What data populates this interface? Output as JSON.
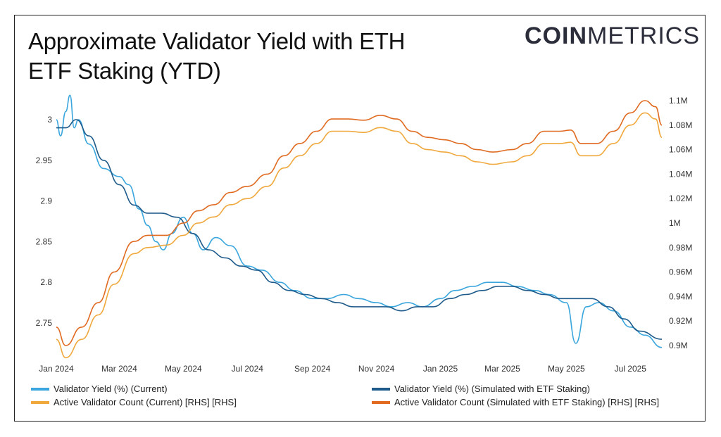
{
  "title_line1": "Approximate Validator Yield with ETH",
  "title_line2": "ETF Staking (YTD)",
  "logo": {
    "bold": "COIN",
    "light": "METRICS"
  },
  "chart_data": {
    "type": "line",
    "title": "Approximate Validator Yield with ETH ETF Staking (YTD)",
    "x_ticks": [
      "Jan 2024",
      "Mar 2024",
      "May 2024",
      "Jul 2024",
      "Sep 2024",
      "Nov 2024",
      "Jan 2025",
      "Mar 2025",
      "May 2025",
      "Jul 2025"
    ],
    "x_range": [
      "2024-01-01",
      "2025-07-31"
    ],
    "y_left": {
      "ticks": [
        "2.75",
        "2.8",
        "2.85",
        "2.9",
        "2.95",
        "3"
      ],
      "range": [
        2.725,
        3.03
      ]
    },
    "y_right": {
      "ticks": [
        "0.9M",
        "0.92M",
        "0.94M",
        "0.96M",
        "0.98M",
        "1M",
        "1.02M",
        "1.04M",
        "1.06M",
        "1.08M",
        "1.1M"
      ],
      "range": [
        0.89,
        1.11
      ]
    },
    "grid": false,
    "legend_position": "bottom",
    "series": [
      {
        "name": "Validator Yield (%) (Current)",
        "axis": "left",
        "color": "#3aa6dd",
        "points": [
          [
            "2024-01-01",
            3.0
          ],
          [
            "2024-01-05",
            2.98
          ],
          [
            "2024-01-10",
            3.01
          ],
          [
            "2024-01-14",
            3.03
          ],
          [
            "2024-01-18",
            2.99
          ],
          [
            "2024-01-22",
            3.0
          ],
          [
            "2024-02-01",
            2.97
          ],
          [
            "2024-02-15",
            2.94
          ],
          [
            "2024-03-01",
            2.93
          ],
          [
            "2024-03-10",
            2.92
          ],
          [
            "2024-03-20",
            2.89
          ],
          [
            "2024-03-28",
            2.87
          ],
          [
            "2024-04-05",
            2.85
          ],
          [
            "2024-04-12",
            2.84
          ],
          [
            "2024-04-20",
            2.86
          ],
          [
            "2024-05-01",
            2.88
          ],
          [
            "2024-05-10",
            2.86
          ],
          [
            "2024-05-20",
            2.84
          ],
          [
            "2024-06-01",
            2.855
          ],
          [
            "2024-06-15",
            2.845
          ],
          [
            "2024-07-01",
            2.82
          ],
          [
            "2024-07-15",
            2.815
          ],
          [
            "2024-08-01",
            2.8
          ],
          [
            "2024-08-15",
            2.79
          ],
          [
            "2024-09-01",
            2.78
          ],
          [
            "2024-09-15",
            2.78
          ],
          [
            "2024-10-01",
            2.785
          ],
          [
            "2024-10-15",
            2.78
          ],
          [
            "2024-11-01",
            2.775
          ],
          [
            "2024-11-15",
            2.77
          ],
          [
            "2024-12-01",
            2.775
          ],
          [
            "2024-12-15",
            2.77
          ],
          [
            "2025-01-01",
            2.78
          ],
          [
            "2025-01-15",
            2.79
          ],
          [
            "2025-02-01",
            2.795
          ],
          [
            "2025-02-15",
            2.8
          ],
          [
            "2025-03-01",
            2.8
          ],
          [
            "2025-03-15",
            2.795
          ],
          [
            "2025-04-01",
            2.79
          ],
          [
            "2025-04-15",
            2.785
          ],
          [
            "2025-05-01",
            2.775
          ],
          [
            "2025-05-10",
            2.725
          ],
          [
            "2025-05-20",
            2.77
          ],
          [
            "2025-06-01",
            2.775
          ],
          [
            "2025-06-15",
            2.765
          ],
          [
            "2025-07-01",
            2.745
          ],
          [
            "2025-07-15",
            2.735
          ],
          [
            "2025-07-31",
            2.72
          ]
        ]
      },
      {
        "name": "Validator Yield (%) (Simulated with ETF Staking)",
        "axis": "left",
        "color": "#1e5a8a",
        "points": [
          [
            "2024-01-01",
            2.99
          ],
          [
            "2024-01-10",
            2.99
          ],
          [
            "2024-01-20",
            3.0
          ],
          [
            "2024-02-01",
            2.98
          ],
          [
            "2024-02-15",
            2.95
          ],
          [
            "2024-03-01",
            2.92
          ],
          [
            "2024-03-15",
            2.895
          ],
          [
            "2024-03-28",
            2.885
          ],
          [
            "2024-04-10",
            2.885
          ],
          [
            "2024-04-25",
            2.88
          ],
          [
            "2024-05-10",
            2.86
          ],
          [
            "2024-05-25",
            2.84
          ],
          [
            "2024-06-10",
            2.83
          ],
          [
            "2024-06-25",
            2.82
          ],
          [
            "2024-07-10",
            2.815
          ],
          [
            "2024-07-25",
            2.8
          ],
          [
            "2024-08-10",
            2.79
          ],
          [
            "2024-08-25",
            2.785
          ],
          [
            "2024-09-10",
            2.78
          ],
          [
            "2024-09-25",
            2.775
          ],
          [
            "2024-10-10",
            2.77
          ],
          [
            "2024-10-25",
            2.77
          ],
          [
            "2024-11-10",
            2.77
          ],
          [
            "2024-11-25",
            2.765
          ],
          [
            "2024-12-10",
            2.77
          ],
          [
            "2024-12-25",
            2.77
          ],
          [
            "2025-01-10",
            2.78
          ],
          [
            "2025-01-25",
            2.785
          ],
          [
            "2025-02-10",
            2.79
          ],
          [
            "2025-02-25",
            2.795
          ],
          [
            "2025-03-10",
            2.795
          ],
          [
            "2025-03-25",
            2.79
          ],
          [
            "2025-04-10",
            2.785
          ],
          [
            "2025-04-25",
            2.78
          ],
          [
            "2025-05-10",
            2.78
          ],
          [
            "2025-05-25",
            2.78
          ],
          [
            "2025-06-10",
            2.77
          ],
          [
            "2025-06-25",
            2.755
          ],
          [
            "2025-07-10",
            2.74
          ],
          [
            "2025-07-31",
            2.73
          ]
        ]
      },
      {
        "name": "Active Validator Count (Current) [RHS] [RHS]",
        "axis": "right",
        "color": "#f0a83c",
        "points": [
          [
            "2024-01-01",
            0.905
          ],
          [
            "2024-01-10",
            0.89
          ],
          [
            "2024-01-25",
            0.905
          ],
          [
            "2024-02-10",
            0.925
          ],
          [
            "2024-02-25",
            0.95
          ],
          [
            "2024-03-15",
            0.975
          ],
          [
            "2024-03-28",
            0.98
          ],
          [
            "2024-04-15",
            0.982
          ],
          [
            "2024-05-01",
            0.99
          ],
          [
            "2024-05-15",
            1.0
          ],
          [
            "2024-05-30",
            1.005
          ],
          [
            "2024-06-15",
            1.015
          ],
          [
            "2024-07-01",
            1.02
          ],
          [
            "2024-07-20",
            1.03
          ],
          [
            "2024-08-05",
            1.045
          ],
          [
            "2024-08-20",
            1.055
          ],
          [
            "2024-09-05",
            1.065
          ],
          [
            "2024-09-20",
            1.075
          ],
          [
            "2024-10-05",
            1.075
          ],
          [
            "2024-10-20",
            1.074
          ],
          [
            "2024-11-05",
            1.078
          ],
          [
            "2024-11-20",
            1.075
          ],
          [
            "2024-12-05",
            1.065
          ],
          [
            "2024-12-20",
            1.06
          ],
          [
            "2025-01-05",
            1.058
          ],
          [
            "2025-01-20",
            1.055
          ],
          [
            "2025-02-05",
            1.05
          ],
          [
            "2025-02-20",
            1.048
          ],
          [
            "2025-03-10",
            1.05
          ],
          [
            "2025-03-25",
            1.055
          ],
          [
            "2025-04-10",
            1.065
          ],
          [
            "2025-04-25",
            1.065
          ],
          [
            "2025-05-05",
            1.066
          ],
          [
            "2025-05-15",
            1.055
          ],
          [
            "2025-05-30",
            1.055
          ],
          [
            "2025-06-15",
            1.065
          ],
          [
            "2025-07-01",
            1.08
          ],
          [
            "2025-07-15",
            1.09
          ],
          [
            "2025-07-25",
            1.085
          ],
          [
            "2025-07-31",
            1.07
          ]
        ]
      },
      {
        "name": "Active Validator Count (Simulated with ETF Staking) [RHS] [RHS]",
        "axis": "right",
        "color": "#e06a20",
        "points": [
          [
            "2024-01-01",
            0.915
          ],
          [
            "2024-01-10",
            0.9
          ],
          [
            "2024-01-25",
            0.915
          ],
          [
            "2024-02-10",
            0.935
          ],
          [
            "2024-02-25",
            0.96
          ],
          [
            "2024-03-15",
            0.985
          ],
          [
            "2024-03-28",
            0.99
          ],
          [
            "2024-04-15",
            0.99
          ],
          [
            "2024-05-01",
            1.0
          ],
          [
            "2024-05-15",
            1.01
          ],
          [
            "2024-05-30",
            1.015
          ],
          [
            "2024-06-15",
            1.025
          ],
          [
            "2024-07-01",
            1.03
          ],
          [
            "2024-07-20",
            1.04
          ],
          [
            "2024-08-05",
            1.055
          ],
          [
            "2024-08-20",
            1.065
          ],
          [
            "2024-09-05",
            1.075
          ],
          [
            "2024-09-20",
            1.085
          ],
          [
            "2024-10-05",
            1.085
          ],
          [
            "2024-10-20",
            1.084
          ],
          [
            "2024-11-05",
            1.088
          ],
          [
            "2024-11-20",
            1.085
          ],
          [
            "2024-12-05",
            1.075
          ],
          [
            "2024-12-20",
            1.07
          ],
          [
            "2025-01-05",
            1.068
          ],
          [
            "2025-01-20",
            1.065
          ],
          [
            "2025-02-05",
            1.06
          ],
          [
            "2025-02-20",
            1.058
          ],
          [
            "2025-03-10",
            1.06
          ],
          [
            "2025-03-25",
            1.065
          ],
          [
            "2025-04-10",
            1.075
          ],
          [
            "2025-04-25",
            1.075
          ],
          [
            "2025-05-05",
            1.076
          ],
          [
            "2025-05-15",
            1.065
          ],
          [
            "2025-05-30",
            1.065
          ],
          [
            "2025-06-15",
            1.075
          ],
          [
            "2025-07-01",
            1.09
          ],
          [
            "2025-07-15",
            1.1
          ],
          [
            "2025-07-25",
            1.095
          ],
          [
            "2025-07-31",
            1.08
          ]
        ]
      }
    ]
  },
  "legend": [
    {
      "label": "Validator Yield (%) (Current)",
      "color": "#3aa6dd"
    },
    {
      "label": "Validator Yield (%) (Simulated with ETF Staking)",
      "color": "#1e5a8a"
    },
    {
      "label": "Active Validator Count (Current) [RHS] [RHS]",
      "color": "#f0a83c"
    },
    {
      "label": "Active Validator Count (Simulated with ETF Staking) [RHS] [RHS]",
      "color": "#e06a20"
    }
  ]
}
